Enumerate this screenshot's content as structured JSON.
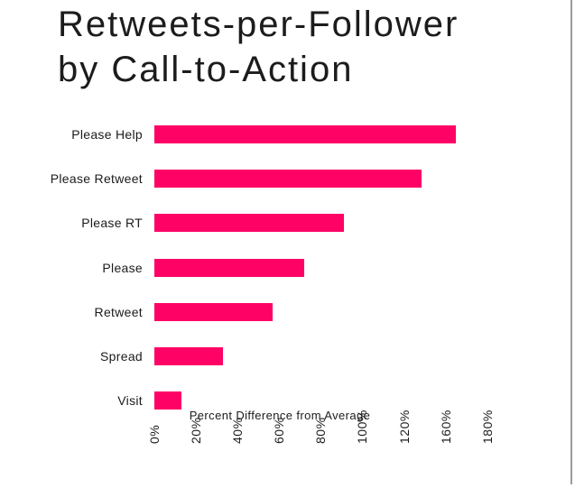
{
  "title": {
    "line1": "Retweets-per-Follower",
    "line2": "by Call-to-Action"
  },
  "colors": {
    "bar": "#ff0266",
    "text": "#1b1b1b",
    "edge_line": "#9b9b9b"
  },
  "chart_data": {
    "type": "bar",
    "orientation": "horizontal",
    "title": "Retweets-per-Follower by Call-to-Action",
    "xlabel": "Percent Difference from Average",
    "categories": [
      "Please Help",
      "Please Retweet",
      "Please RT",
      "Please",
      "Retweet",
      "Spread",
      "Visit"
    ],
    "values": [
      165,
      137,
      91,
      72,
      57,
      33,
      13
    ],
    "unit": "%",
    "x_tick_labels": [
      "0%",
      "20%",
      "40%",
      "60%",
      "80%",
      "100%",
      "120%",
      "160%",
      "180%"
    ],
    "x_tick_values": [
      0,
      20,
      40,
      60,
      80,
      100,
      120,
      160,
      180
    ],
    "bar_color": "#ff0266",
    "grid": false,
    "legend": false
  }
}
